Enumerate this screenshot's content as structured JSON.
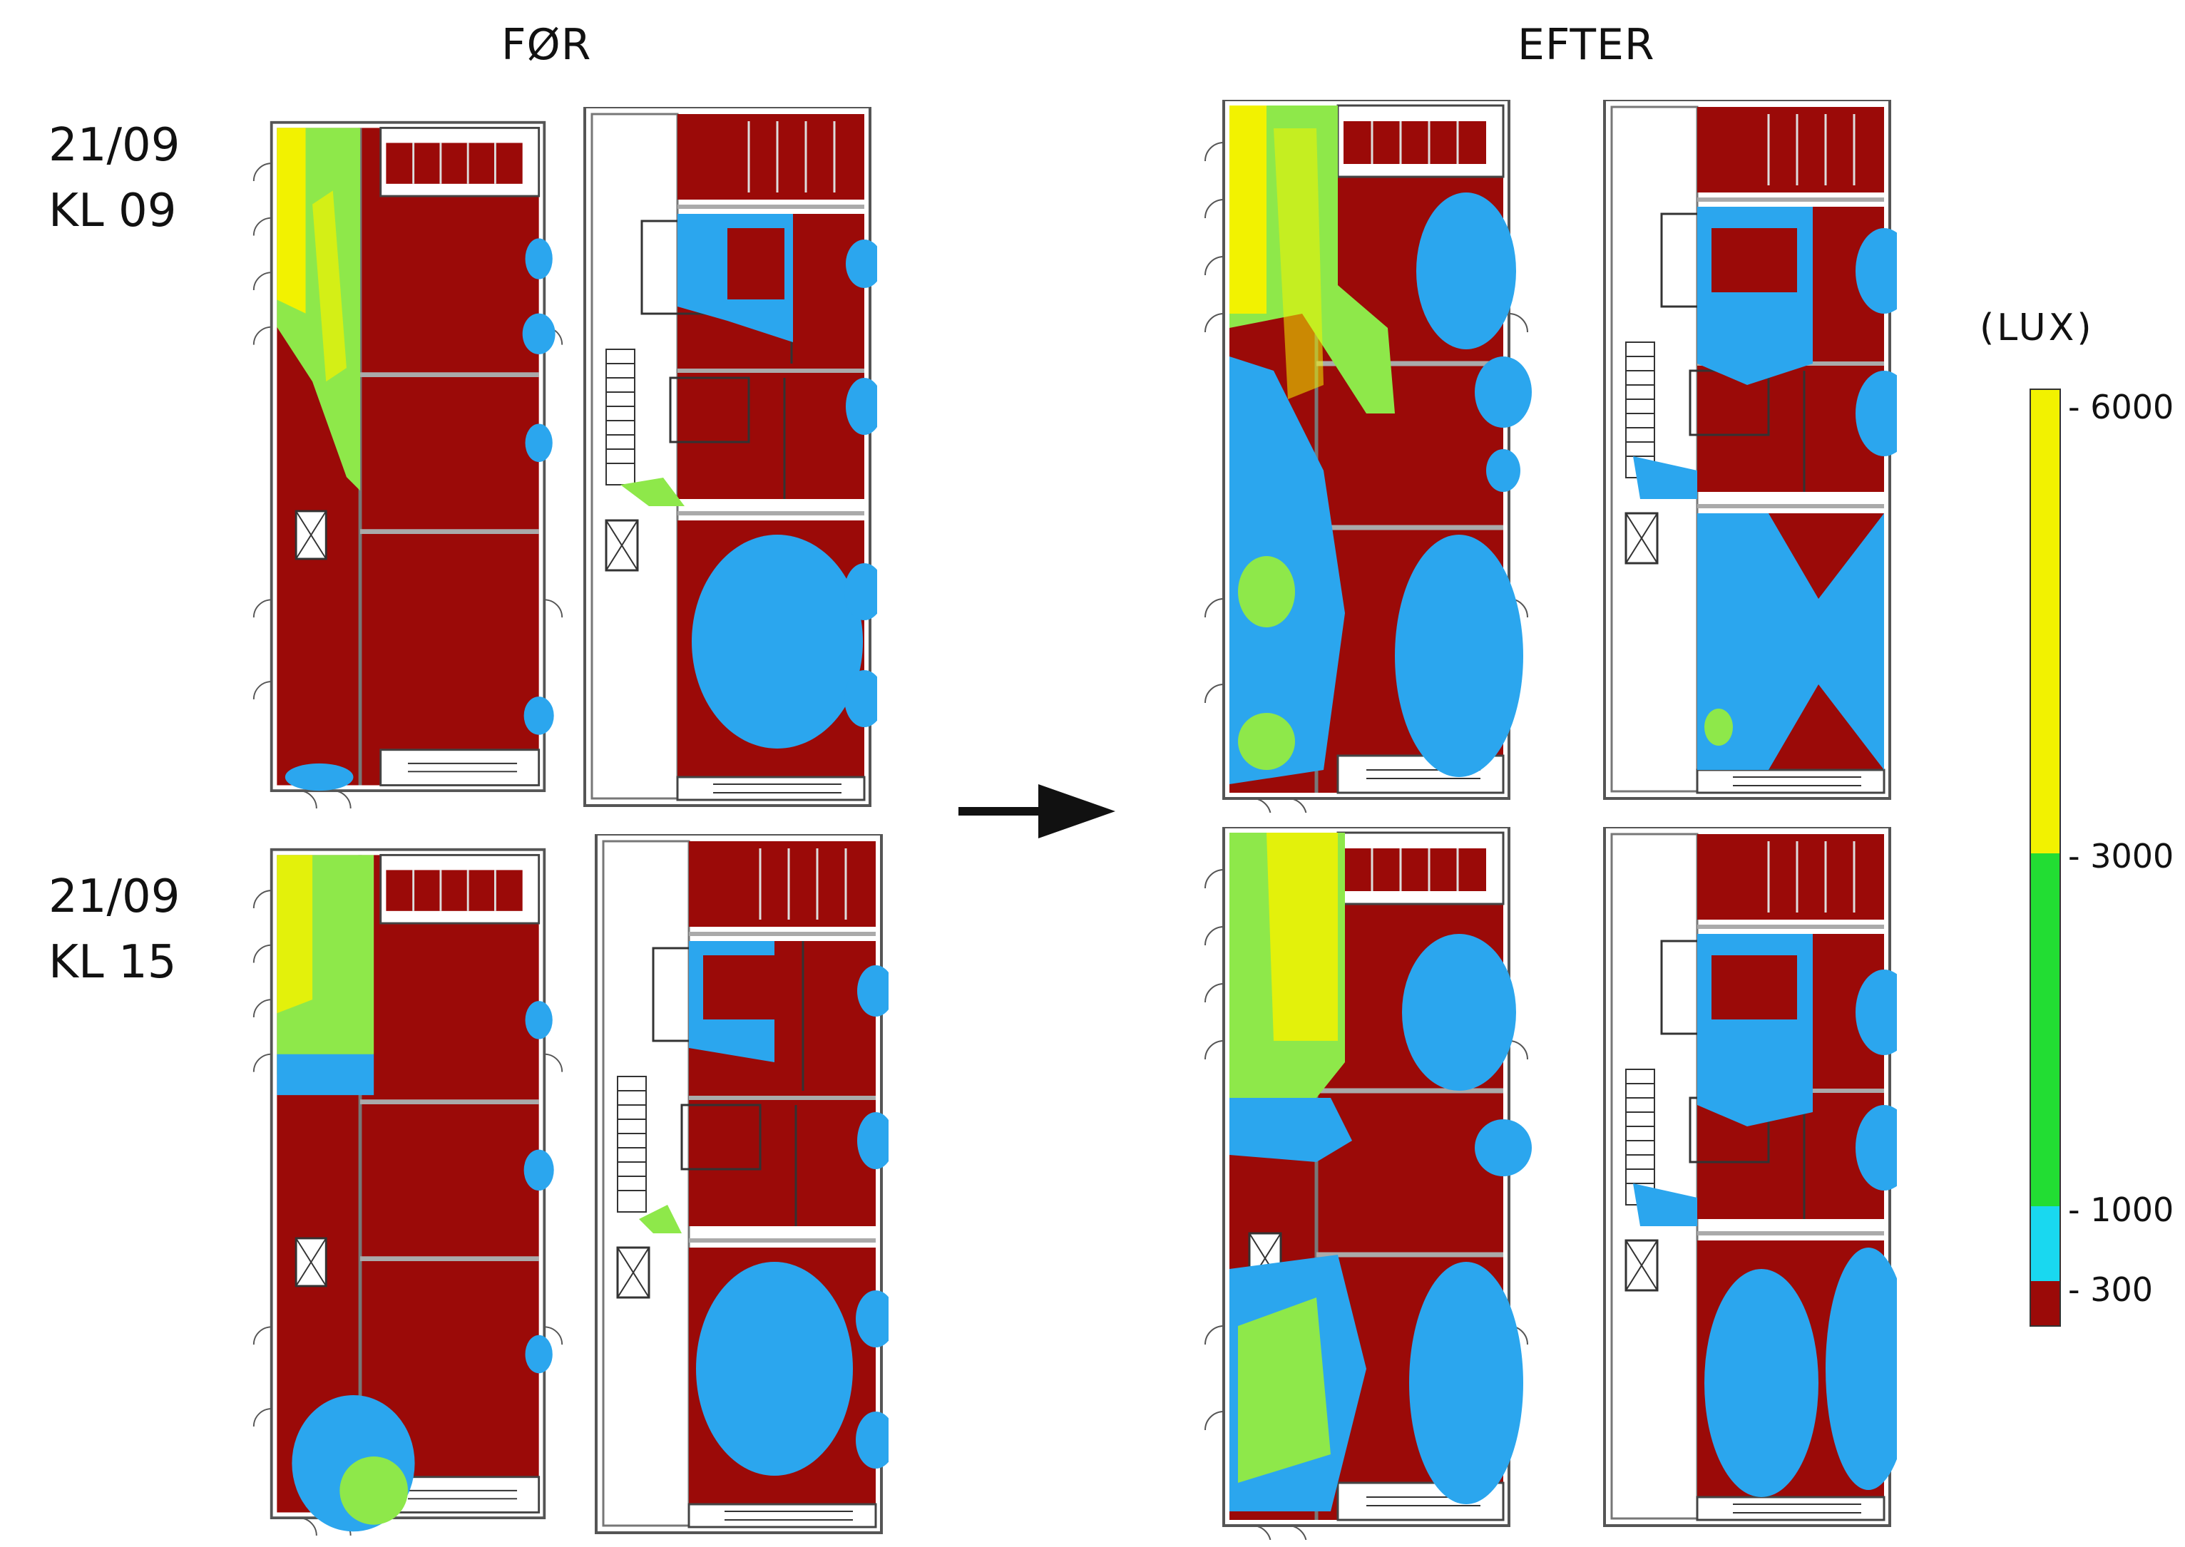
{
  "headers": {
    "before": "FØR",
    "after": "EFTER"
  },
  "rows": [
    {
      "date": "21/09",
      "time": "KL 09"
    },
    {
      "date": "21/09",
      "time": "KL 15"
    }
  ],
  "legend": {
    "unit": "(LUX)",
    "ticks": [
      "- 6000",
      "- 3000",
      "- 1000",
      "- 300"
    ],
    "colors": {
      "above_3000": "#f2f200",
      "1000_3000": "#22dd33",
      "300_1000": "#19d8f0",
      "below_300": "#9b0a08",
      "plan_floor": "#9b0a08",
      "daylight_zone": "#2ba6ee",
      "bright_zone": "#8ee84a"
    }
  }
}
